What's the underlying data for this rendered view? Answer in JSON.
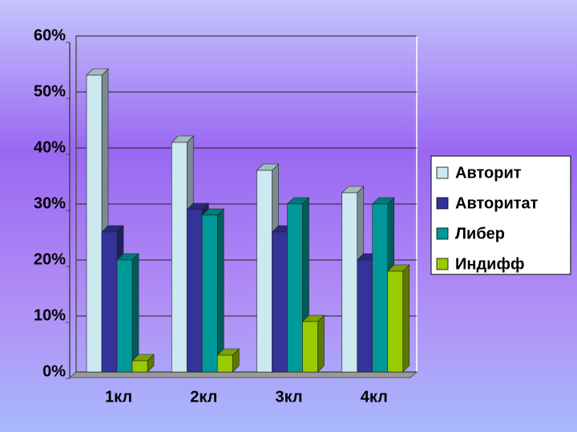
{
  "chart_data": {
    "type": "bar",
    "categories": [
      "1кл",
      "2кл",
      "3кл",
      "4кл"
    ],
    "series": [
      {
        "name": "Авторит",
        "color": "#cce8f0",
        "values": [
          53,
          41,
          36,
          32
        ]
      },
      {
        "name": "Авторитат",
        "color": "#333399",
        "values": [
          25,
          29,
          25,
          20
        ]
      },
      {
        "name": "Либер",
        "color": "#009999",
        "values": [
          20,
          28,
          30,
          30
        ]
      },
      {
        "name": "Индифф",
        "color": "#99cc00",
        "values": [
          2,
          3,
          9,
          18
        ]
      }
    ],
    "ylim": [
      0,
      60
    ],
    "yticks": [
      {
        "value": 0,
        "label": "0%"
      },
      {
        "value": 10,
        "label": "10%"
      },
      {
        "value": 20,
        "label": "20%"
      },
      {
        "value": 30,
        "label": "30%"
      },
      {
        "value": 40,
        "label": "40%"
      },
      {
        "value": 50,
        "label": "50%"
      },
      {
        "value": 60,
        "label": "60%"
      }
    ],
    "grid": true,
    "legend": "right"
  }
}
